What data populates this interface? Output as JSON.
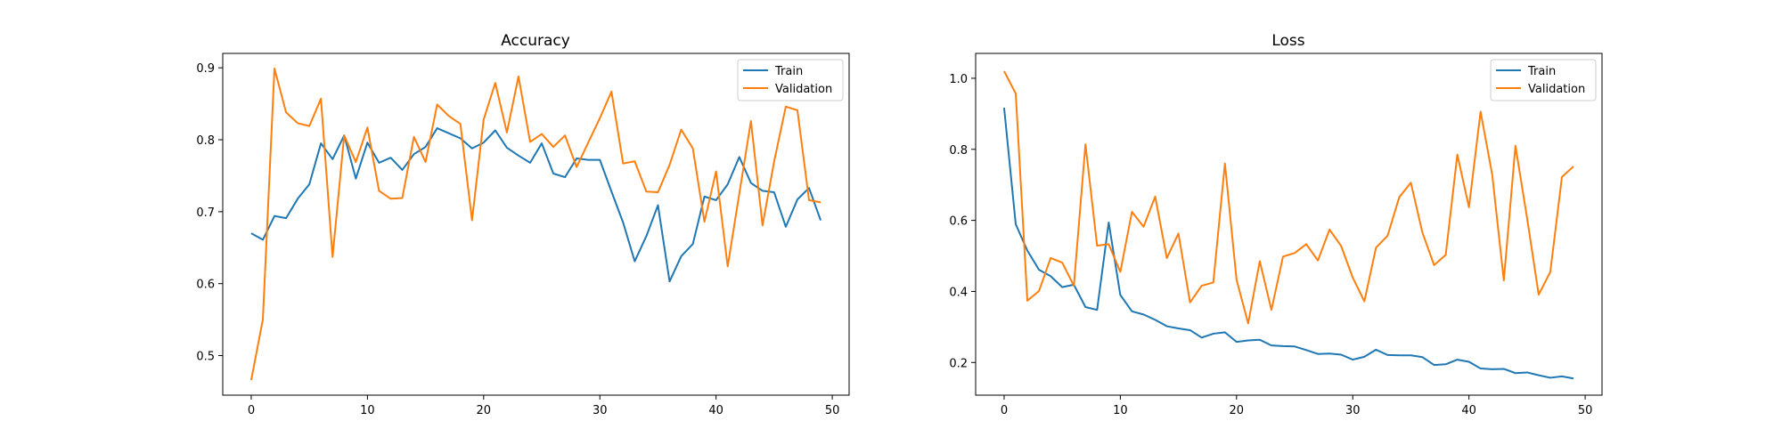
{
  "colors": {
    "train": "#1f77b4",
    "validation": "#ff7f0e"
  },
  "chart_data": [
    {
      "type": "line",
      "title": "Accuracy",
      "xlabel": "",
      "ylabel": "",
      "xlim": [
        -2.45,
        51.45
      ],
      "ylim": [
        0.445,
        0.92
      ],
      "xticks": [
        0,
        10,
        20,
        30,
        40,
        50
      ],
      "yticks": [
        0.5,
        0.6,
        0.7,
        0.8,
        0.9
      ],
      "ytick_labels": [
        "0.5",
        "0.6",
        "0.7",
        "0.8",
        "0.9"
      ],
      "legend": "top-right",
      "grid": false,
      "series": [
        {
          "name": "Train",
          "values": [
            0.67,
            0.661,
            0.694,
            0.691,
            0.718,
            0.738,
            0.795,
            0.773,
            0.806,
            0.746,
            0.796,
            0.768,
            0.775,
            0.758,
            0.78,
            0.79,
            0.816,
            0.809,
            0.802,
            0.788,
            0.796,
            0.813,
            0.789,
            0.778,
            0.768,
            0.795,
            0.753,
            0.748,
            0.774,
            0.772,
            0.772,
            0.728,
            0.685,
            0.631,
            0.666,
            0.709,
            0.603,
            0.638,
            0.655,
            0.721,
            0.716,
            0.738,
            0.776,
            0.74,
            0.729,
            0.727,
            0.679,
            0.717,
            0.733,
            0.688
          ]
        },
        {
          "name": "Validation",
          "values": [
            0.466,
            0.55,
            0.899,
            0.838,
            0.823,
            0.819,
            0.857,
            0.637,
            0.806,
            0.769,
            0.817,
            0.729,
            0.718,
            0.719,
            0.804,
            0.769,
            0.849,
            0.833,
            0.822,
            0.688,
            0.828,
            0.879,
            0.81,
            0.888,
            0.797,
            0.808,
            0.79,
            0.806,
            0.762,
            0.796,
            0.83,
            0.867,
            0.767,
            0.77,
            0.728,
            0.727,
            0.765,
            0.814,
            0.788,
            0.686,
            0.756,
            0.624,
            0.725,
            0.826,
            0.681,
            0.77,
            0.846,
            0.841,
            0.716,
            0.713
          ]
        }
      ]
    },
    {
      "type": "line",
      "title": "Loss",
      "xlabel": "",
      "ylabel": "",
      "xlim": [
        -2.45,
        51.45
      ],
      "ylim": [
        0.108,
        1.07
      ],
      "xticks": [
        0,
        10,
        20,
        30,
        40,
        50
      ],
      "yticks": [
        0.2,
        0.4,
        0.6,
        0.8,
        1.0
      ],
      "ytick_labels": [
        "0.2",
        "0.4",
        "0.6",
        "0.8",
        "1.0"
      ],
      "legend": "top-right",
      "grid": false,
      "series": [
        {
          "name": "Train",
          "values": [
            0.917,
            0.589,
            0.515,
            0.461,
            0.443,
            0.412,
            0.419,
            0.356,
            0.348,
            0.594,
            0.39,
            0.344,
            0.335,
            0.32,
            0.302,
            0.296,
            0.291,
            0.27,
            0.281,
            0.285,
            0.258,
            0.262,
            0.264,
            0.248,
            0.246,
            0.245,
            0.235,
            0.224,
            0.225,
            0.222,
            0.208,
            0.216,
            0.236,
            0.221,
            0.22,
            0.22,
            0.215,
            0.193,
            0.195,
            0.208,
            0.202,
            0.183,
            0.181,
            0.182,
            0.17,
            0.172,
            0.164,
            0.157,
            0.161,
            0.155
          ]
        },
        {
          "name": "Validation",
          "values": [
            1.02,
            0.957,
            0.374,
            0.401,
            0.494,
            0.481,
            0.416,
            0.814,
            0.529,
            0.533,
            0.455,
            0.624,
            0.582,
            0.667,
            0.494,
            0.563,
            0.369,
            0.416,
            0.425,
            0.76,
            0.433,
            0.31,
            0.485,
            0.348,
            0.498,
            0.508,
            0.533,
            0.487,
            0.574,
            0.528,
            0.439,
            0.372,
            0.523,
            0.557,
            0.665,
            0.706,
            0.565,
            0.474,
            0.503,
            0.785,
            0.637,
            0.906,
            0.729,
            0.431,
            0.81,
            0.607,
            0.391,
            0.455,
            0.722,
            0.752
          ]
        }
      ]
    }
  ]
}
